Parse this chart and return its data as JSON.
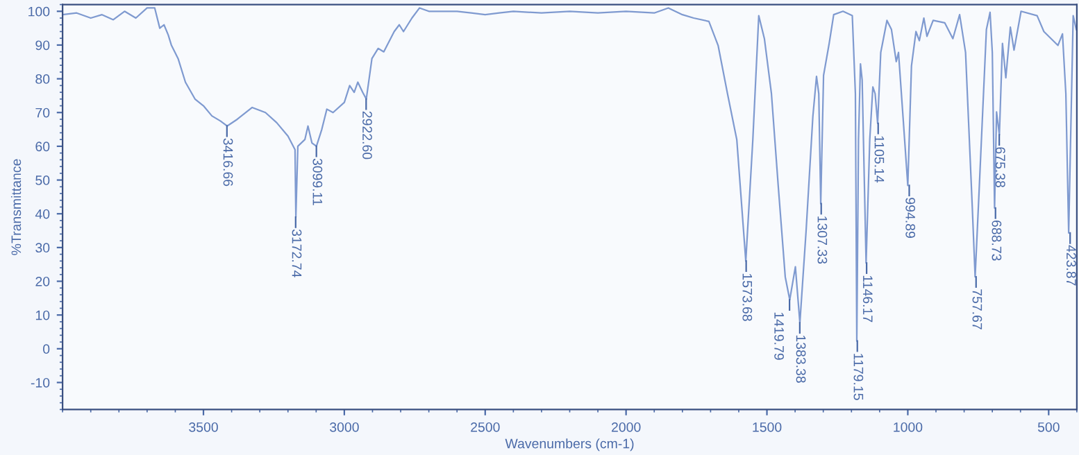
{
  "chart_data": {
    "type": "line",
    "xlabel": "Wavenumbers (cm-1)",
    "ylabel": "%Transmittance",
    "xlim": [
      4000,
      400
    ],
    "ylim": [
      -18,
      102
    ],
    "xticks": [
      3500,
      3000,
      2500,
      2000,
      1500,
      1000,
      500
    ],
    "yticks": [
      -10,
      0,
      10,
      20,
      30,
      40,
      50,
      60,
      70,
      80,
      90,
      100
    ],
    "grid": false,
    "legend": false,
    "marker": "none",
    "line_style": "solid",
    "series": [
      {
        "color": "#7f9ad0",
        "x": [
          4000,
          3950,
          3900,
          3860,
          3820,
          3780,
          3740,
          3700,
          3673,
          3655,
          3640,
          3625,
          3614,
          3590,
          3564,
          3530,
          3500,
          3470,
          3440,
          3416,
          3380,
          3327,
          3280,
          3240,
          3200,
          3175,
          3172,
          3165,
          3140,
          3129,
          3115,
          3099,
          3080,
          3062,
          3040,
          3000,
          2981,
          2965,
          2952,
          2935,
          2922,
          2902,
          2880,
          2860,
          2823,
          2805,
          2790,
          2760,
          2733,
          2700,
          2650,
          2600,
          2550,
          2500,
          2450,
          2400,
          2300,
          2200,
          2100,
          2000,
          1900,
          1850,
          1800,
          1760,
          1706,
          1673,
          1640,
          1607,
          1575,
          1550,
          1529,
          1509,
          1484,
          1460,
          1435,
          1419,
          1399,
          1383,
          1361,
          1337,
          1324,
          1316,
          1309,
          1299,
          1279,
          1263,
          1230,
          1197,
          1186,
          1181,
          1175,
          1168,
          1162,
          1148,
          1135,
          1124,
          1116,
          1107,
          1096,
          1074,
          1058,
          1041,
          1033,
          1017,
          1000,
          987,
          971,
          959,
          943,
          932,
          910,
          869,
          840,
          816,
          795,
          771,
          761,
          746,
          721,
          708,
          700,
          692,
          685,
          675,
          664,
          652,
          636,
          623,
          598,
          541,
          517,
          467,
          451,
          439,
          429,
          413,
          402
        ],
        "values": [
          99,
          99.5,
          98,
          99,
          97.5,
          100,
          98,
          101,
          101,
          95,
          96,
          93,
          90,
          86,
          79,
          74,
          72,
          69,
          67.5,
          66,
          68,
          71.5,
          70,
          67,
          63,
          59,
          39,
          60,
          62,
          66,
          61,
          60,
          65,
          71,
          70,
          73,
          78,
          76,
          79,
          76,
          74,
          86,
          89,
          88,
          94,
          96,
          94,
          98,
          101,
          100,
          100,
          100,
          99.5,
          99,
          99.5,
          100,
          99.5,
          100,
          99.5,
          100,
          99.5,
          101,
          99,
          98,
          97,
          89.8,
          75.6,
          62,
          26,
          62,
          98.7,
          91.9,
          75.6,
          48.4,
          21.3,
          14.5,
          24.3,
          7.7,
          34.9,
          68.8,
          80.7,
          75.6,
          43,
          81,
          90.5,
          99,
          100,
          98.7,
          75.6,
          2.3,
          62,
          84.4,
          79.7,
          25.4,
          62,
          77.6,
          75.6,
          66.8,
          87.8,
          97.3,
          94.6,
          85.1,
          87.8,
          68.8,
          48.4,
          83.8,
          94,
          91.3,
          98,
          92.6,
          97.3,
          96.6,
          91.9,
          99,
          87.8,
          41.7,
          21.3,
          48.4,
          94.6,
          99.7,
          87.8,
          41.7,
          70.2,
          63.4,
          90.5,
          80.3,
          95.3,
          88.5,
          100,
          98.7,
          94,
          89.9,
          93.3,
          75.6,
          34.3,
          98.7,
          94.6
        ]
      }
    ],
    "annotations": [
      {
        "text": "3416.66",
        "x": 3416.66,
        "y": 66
      },
      {
        "text": "3172.74",
        "x": 3172.74,
        "y": 39
      },
      {
        "text": "3099.11",
        "x": 3099.11,
        "y": 60
      },
      {
        "text": "2922.60",
        "x": 2922.6,
        "y": 74
      },
      {
        "text": "1573.68",
        "x": 1573.68,
        "y": 26
      },
      {
        "text": "1419.79",
        "x": 1419.79,
        "y": 14.5
      },
      {
        "text": "1383.38",
        "x": 1383.38,
        "y": 7.7
      },
      {
        "text": "1307.33",
        "x": 1307.33,
        "y": 43
      },
      {
        "text": "1179.15",
        "x": 1179.15,
        "y": 2.3
      },
      {
        "text": "1146.17",
        "x": 1146.17,
        "y": 25.4
      },
      {
        "text": "1105.14",
        "x": 1105.14,
        "y": 66.8
      },
      {
        "text": "994.89",
        "x": 994.89,
        "y": 48.4
      },
      {
        "text": "757.67",
        "x": 757.67,
        "y": 21.3
      },
      {
        "text": "688.73",
        "x": 688.73,
        "y": 41.7
      },
      {
        "text": "675.38",
        "x": 675.38,
        "y": 63.4
      },
      {
        "text": "423.87",
        "x": 423.87,
        "y": 34.3
      }
    ]
  }
}
